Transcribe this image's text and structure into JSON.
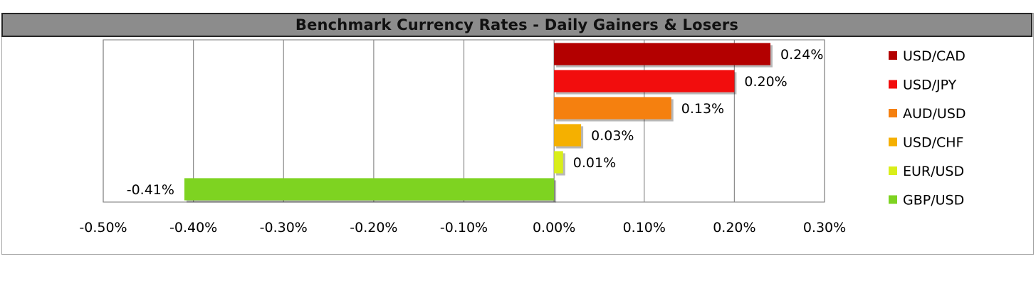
{
  "chart_data": {
    "type": "bar",
    "orientation": "horizontal",
    "title": "Benchmark Currency Rates - Daily Gainers & Losers",
    "categories": [
      "USD/CAD",
      "USD/JPY",
      "AUD/USD",
      "USD/CHF",
      "EUR/USD",
      "GBP/USD"
    ],
    "values": [
      0.24,
      0.2,
      0.13,
      0.03,
      0.01,
      -0.41
    ],
    "data_labels": [
      "0.24%",
      "0.20%",
      "0.13%",
      "0.03%",
      "0.01%",
      "-0.41%"
    ],
    "colors": [
      "#b30000",
      "#f20d0d",
      "#f5800f",
      "#f5b000",
      "#d9ee1a",
      "#7ed321"
    ],
    "xlim": [
      -0.5,
      0.3
    ],
    "xticks": [
      -0.5,
      -0.4,
      -0.3,
      -0.2,
      -0.1,
      0.0,
      0.1,
      0.2,
      0.3
    ],
    "xtick_labels": [
      "-0.50%",
      "-0.40%",
      "-0.30%",
      "-0.20%",
      "-0.10%",
      "0.00%",
      "0.10%",
      "0.20%",
      "0.30%"
    ],
    "grid": "vertical",
    "legend": "right",
    "xlabel": "",
    "ylabel": ""
  }
}
